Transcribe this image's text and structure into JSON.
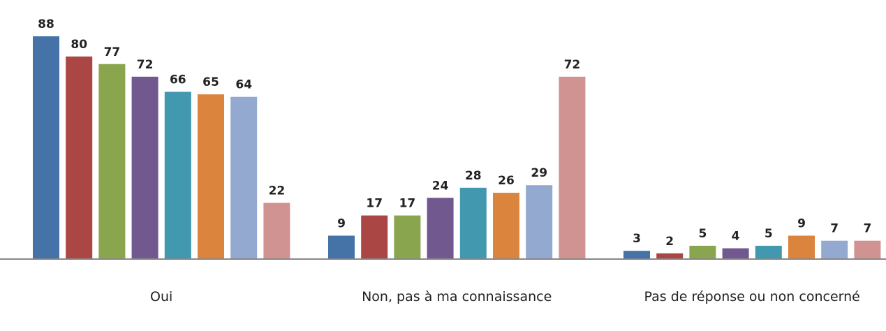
{
  "chart_data": {
    "type": "bar",
    "categories": [
      "Oui",
      "Non, pas à ma connaissance",
      "Pas de réponse ou non concerné"
    ],
    "series": [
      {
        "color": "#4572a7",
        "values": [
          88,
          9,
          3
        ]
      },
      {
        "color": "#aa4643",
        "values": [
          80,
          17,
          2
        ]
      },
      {
        "color": "#89a54e",
        "values": [
          77,
          17,
          5
        ]
      },
      {
        "color": "#71588f",
        "values": [
          72,
          24,
          4
        ]
      },
      {
        "color": "#4198af",
        "values": [
          66,
          28,
          5
        ]
      },
      {
        "color": "#db843d",
        "values": [
          65,
          26,
          9
        ]
      },
      {
        "color": "#93a9cf",
        "values": [
          64,
          29,
          7
        ]
      },
      {
        "color": "#d19392",
        "values": [
          22,
          72,
          7
        ]
      }
    ]
  }
}
